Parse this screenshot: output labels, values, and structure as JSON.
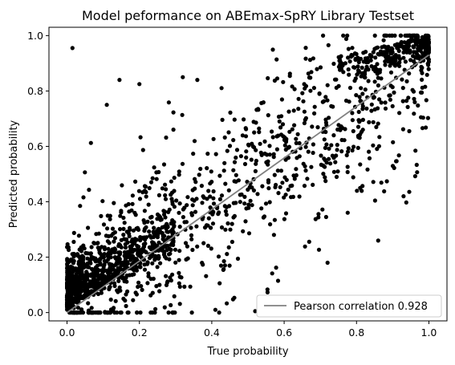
{
  "chart_data": {
    "type": "scatter",
    "title": "Model peformance on ABEmax-SpRY Library Testset",
    "xlabel": "True probability",
    "ylabel": "Predicted probability",
    "xlim": [
      -0.05,
      1.05
    ],
    "ylim": [
      -0.03,
      1.03
    ],
    "xticks": [
      "0.0",
      "0.2",
      "0.4",
      "0.6",
      "0.8",
      "1.0"
    ],
    "yticks": [
      "0.0",
      "0.2",
      "0.4",
      "0.6",
      "0.8",
      "1.0"
    ],
    "grid": false,
    "legend": {
      "position": "lower-right",
      "entries": [
        "Pearson correlation 0.928"
      ]
    },
    "colors": {
      "points": "#000000",
      "fit_line": "#808080"
    },
    "series": [
      {
        "kind": "points",
        "approx_count": 2000,
        "note_points": [
          {
            "x": 0.015,
            "y": 0.955
          },
          {
            "x": 0.11,
            "y": 0.75
          },
          {
            "x": 0.145,
            "y": 0.84
          },
          {
            "x": 0.2,
            "y": 0.825
          },
          {
            "x": 0.32,
            "y": 0.85
          },
          {
            "x": 0.36,
            "y": 0.84
          },
          {
            "x": 0.97,
            "y": 0.995
          },
          {
            "x": 0.99,
            "y": 0.99
          },
          {
            "x": 0.52,
            "y": 0.005
          },
          {
            "x": 0.41,
            "y": 0.01
          },
          {
            "x": 0.67,
            "y": 0.02
          },
          {
            "x": 0.93,
            "y": 0.42
          },
          {
            "x": 0.86,
            "y": 0.26
          },
          {
            "x": 0.81,
            "y": 0.45
          },
          {
            "x": 0.72,
            "y": 0.18
          }
        ]
      },
      {
        "kind": "line",
        "name": "Pearson correlation 0.928",
        "x": [
          0.0,
          1.0
        ],
        "y": [
          0.0,
          0.93
        ]
      }
    ]
  }
}
